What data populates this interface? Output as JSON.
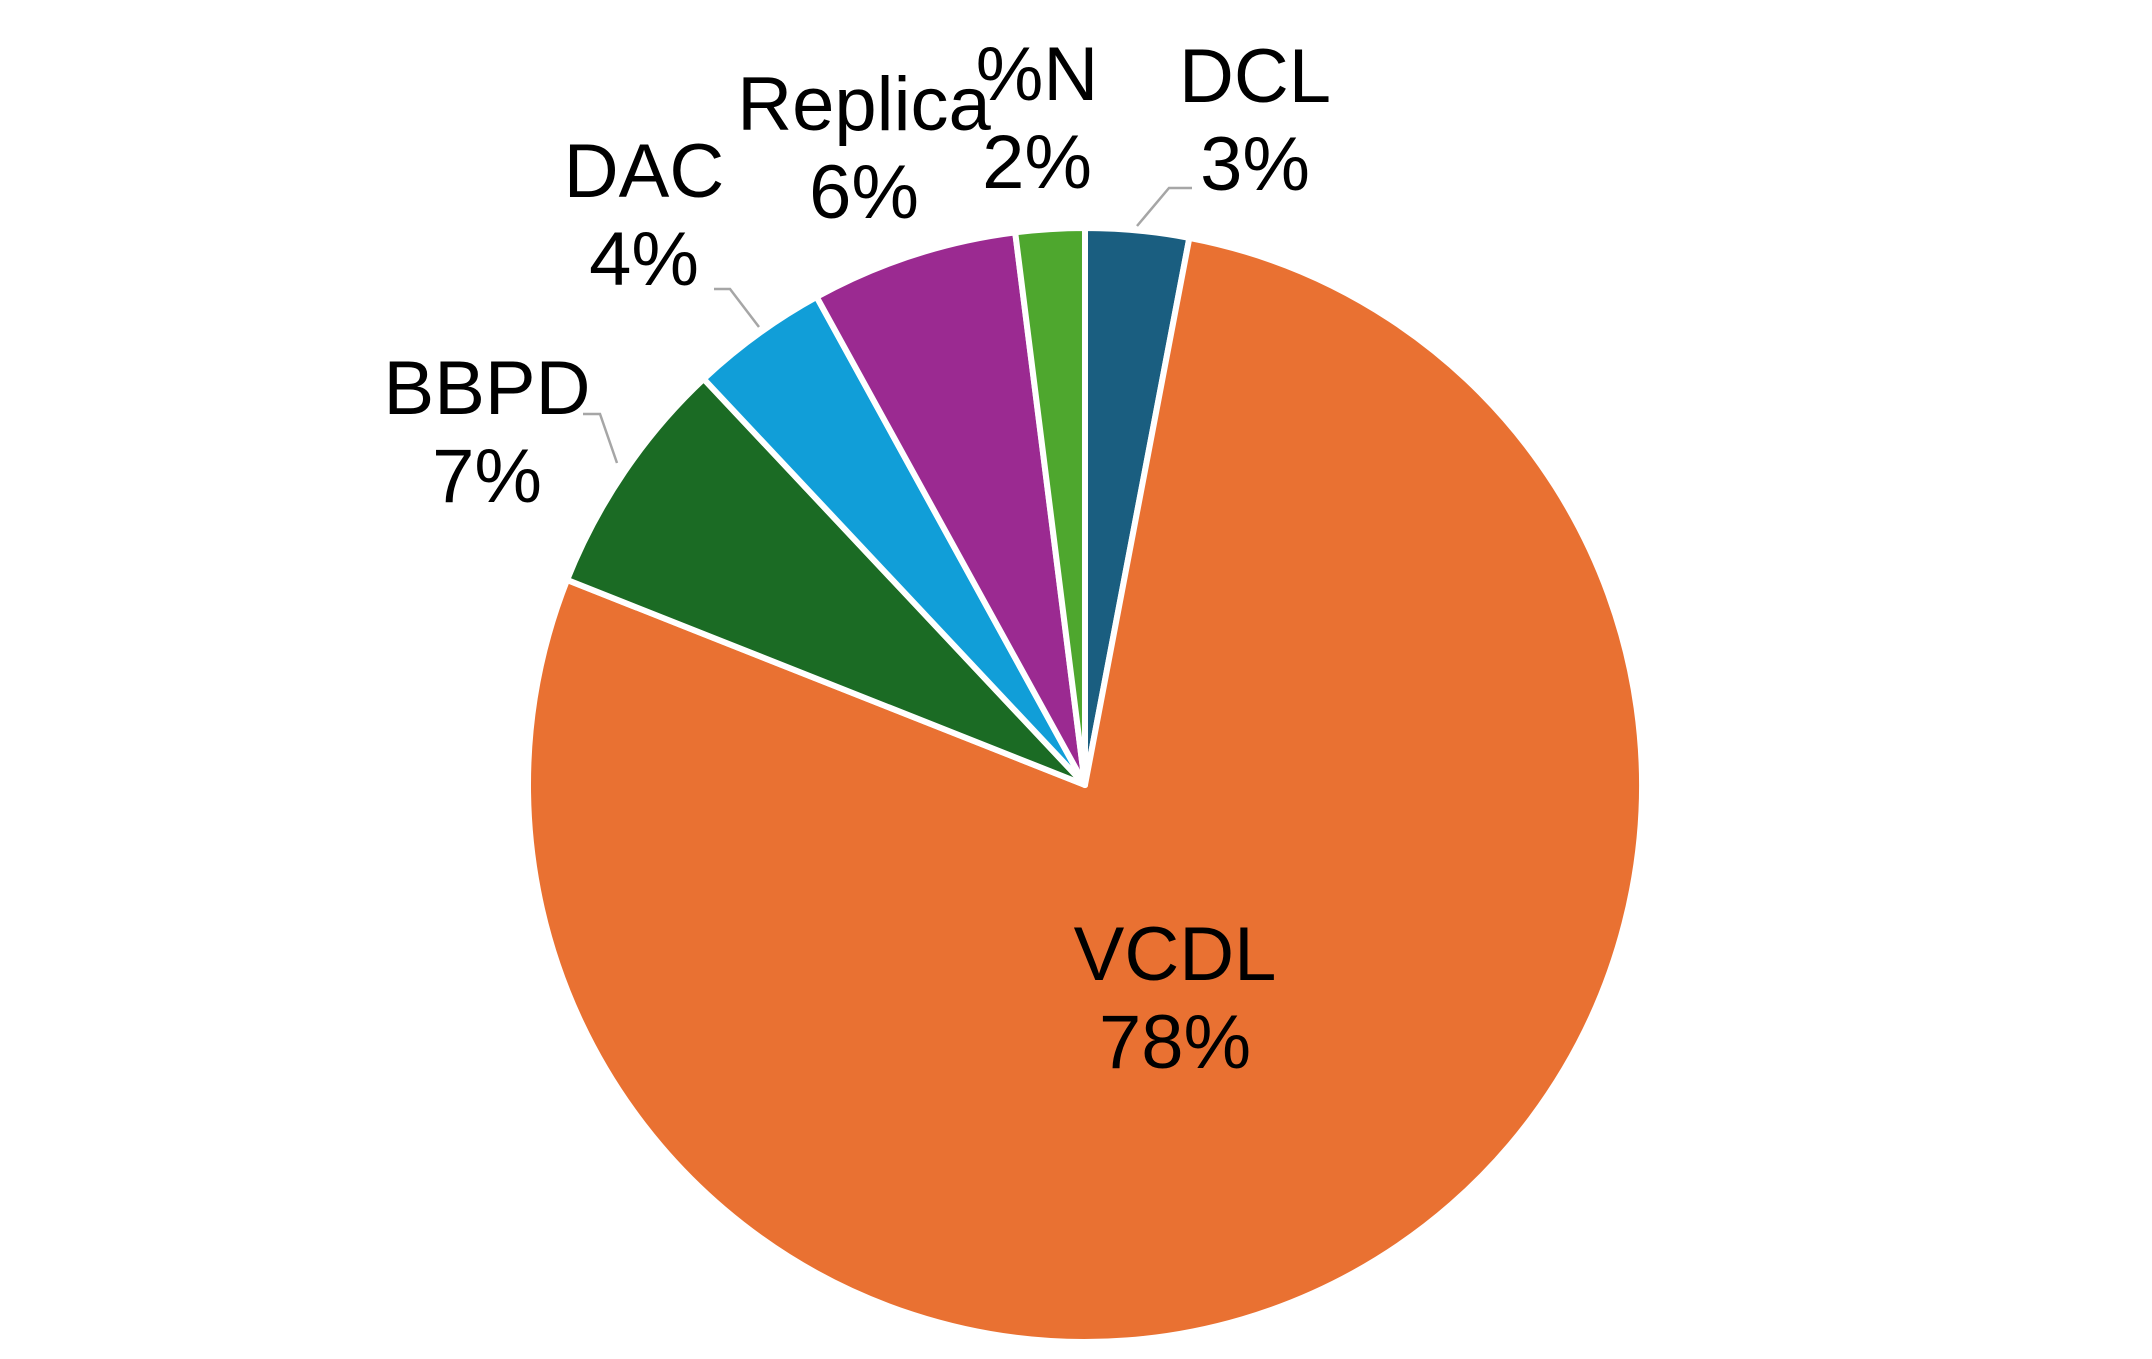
{
  "chart_data": {
    "type": "pie",
    "start_angle_deg": 0,
    "direction": "clockwise",
    "slices": [
      {
        "label": "DCL",
        "value": 3,
        "value_label": "3%",
        "color": "#1a5e80"
      },
      {
        "label": "VCDL",
        "value": 78,
        "value_label": "78%",
        "color": "#e97132"
      },
      {
        "label": "BBPD",
        "value": 7,
        "value_label": "7%",
        "color": "#1b6b24"
      },
      {
        "label": "DAC",
        "value": 4,
        "value_label": "4%",
        "color": "#119ed8"
      },
      {
        "label": "Replica",
        "value": 6,
        "value_label": "6%",
        "color": "#9b2a91"
      },
      {
        "label": "%N",
        "value": 2,
        "value_label": "2%",
        "color": "#4ea72e"
      }
    ]
  }
}
